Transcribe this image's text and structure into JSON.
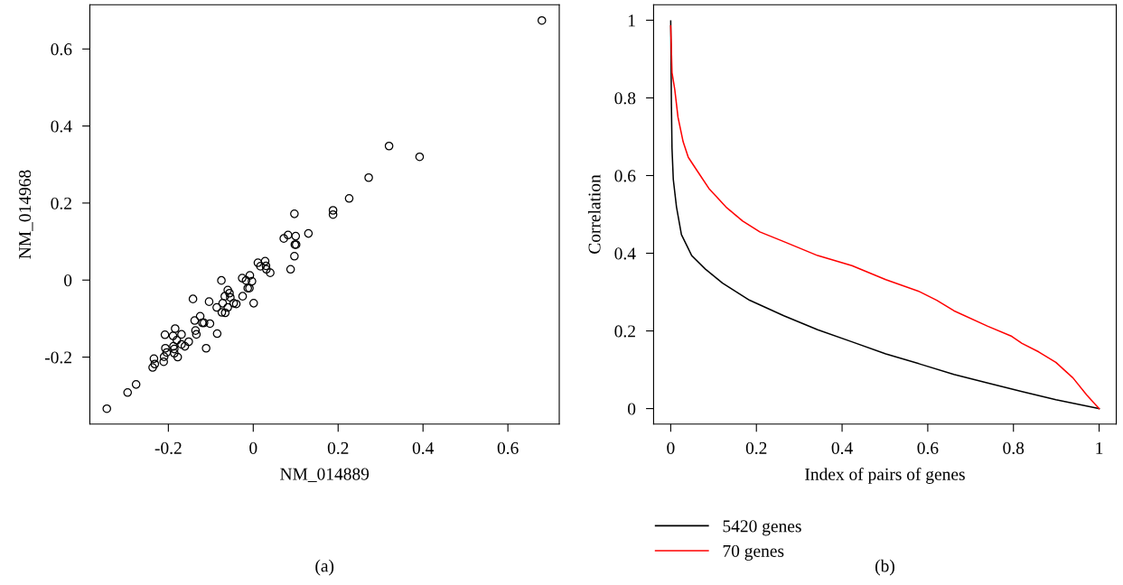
{
  "chart_data": [
    {
      "type": "scatter",
      "xlabel": "NM_014889",
      "ylabel": "NM_014968",
      "annotations": [
        "(a)"
      ],
      "marker": "circle",
      "grid": false,
      "legend": false,
      "xlim": [
        -0.385,
        0.721
      ],
      "ylim": [
        -0.374,
        0.715
      ],
      "xticks": [
        -0.2,
        0,
        0.2,
        0.4,
        0.6
      ],
      "yticks": [
        -0.2,
        0,
        0.2,
        0.4,
        0.6
      ],
      "series": [
        {
          "color": "#000000",
          "x": [
            0.68,
            0.32,
            0.392,
            0.272,
            0.226,
            0.188,
            0.188,
            0.097,
            0.13,
            0.072,
            0.082,
            0.1,
            0.098,
            0.101,
            0.097,
            0.088,
            0.011,
            0.017,
            0.028,
            0.03,
            0.031,
            0.04,
            -0.026,
            -0.008,
            -0.017,
            -0.003,
            -0.013,
            -0.009,
            -0.075,
            -0.025,
            0.001,
            -0.06,
            -0.056,
            -0.067,
            -0.054,
            -0.046,
            -0.04,
            -0.104,
            -0.142,
            -0.072,
            -0.086,
            -0.06,
            -0.074,
            -0.066,
            -0.138,
            -0.125,
            -0.12,
            -0.116,
            -0.102,
            -0.136,
            -0.134,
            -0.085,
            -0.184,
            -0.208,
            -0.189,
            -0.169,
            -0.18,
            -0.152,
            -0.169,
            -0.161,
            -0.188,
            -0.111,
            -0.207,
            -0.186,
            -0.204,
            -0.186,
            -0.178,
            -0.21,
            -0.234,
            -0.211,
            -0.232,
            -0.237,
            -0.276,
            -0.296,
            -0.345
          ],
          "values": [
            0.674,
            0.348,
            0.32,
            0.266,
            0.212,
            0.181,
            0.17,
            0.172,
            0.121,
            0.108,
            0.117,
            0.114,
            0.092,
            0.092,
            0.062,
            0.028,
            0.045,
            0.036,
            0.049,
            0.037,
            0.028,
            0.019,
            0.005,
            0.012,
            -0.001,
            -0.003,
            -0.021,
            -0.021,
            -0.001,
            -0.042,
            -0.06,
            -0.026,
            -0.034,
            -0.042,
            -0.045,
            -0.06,
            -0.062,
            -0.056,
            -0.049,
            -0.06,
            -0.071,
            -0.071,
            -0.084,
            -0.085,
            -0.105,
            -0.094,
            -0.111,
            -0.111,
            -0.113,
            -0.131,
            -0.141,
            -0.139,
            -0.126,
            -0.142,
            -0.145,
            -0.141,
            -0.156,
            -0.16,
            -0.167,
            -0.172,
            -0.172,
            -0.177,
            -0.177,
            -0.179,
            -0.188,
            -0.19,
            -0.2,
            -0.199,
            -0.204,
            -0.212,
            -0.218,
            -0.227,
            -0.271,
            -0.292,
            -0.334
          ]
        }
      ]
    },
    {
      "type": "line",
      "xlabel": "Index of pairs of genes",
      "ylabel": "Correlation",
      "annotations": [
        "(b)"
      ],
      "grid": false,
      "legend": "bottom left",
      "marker": "none",
      "line_style": "solid",
      "xlim": [
        -0.04,
        1.04
      ],
      "ylim": [
        -0.04,
        1.04
      ],
      "xticks": [
        0,
        0.2,
        0.4,
        0.6,
        0.8,
        1
      ],
      "yticks": [
        0,
        0.2,
        0.4,
        0.6,
        0.8,
        1
      ],
      "series": [
        {
          "name": "5420 genes",
          "color": "#000000",
          "x": [
            0,
            0.0016,
            0.003,
            0.006,
            0.0135,
            0.025,
            0.049,
            0.081,
            0.121,
            0.184,
            0.264,
            0.343,
            0.423,
            0.502,
            0.581,
            0.661,
            0.74,
            0.82,
            0.899,
            1
          ],
          "values": [
            0.998,
            0.785,
            0.67,
            0.59,
            0.519,
            0.448,
            0.394,
            0.359,
            0.323,
            0.279,
            0.239,
            0.203,
            0.172,
            0.141,
            0.115,
            0.088,
            0.066,
            0.044,
            0.023,
            0
          ]
        },
        {
          "name": "70 genes",
          "color": "#ff0000",
          "x": [
            0,
            0.003,
            0.0095,
            0.017,
            0.029,
            0.041,
            0.065,
            0.089,
            0.129,
            0.168,
            0.208,
            0.264,
            0.343,
            0.423,
            0.502,
            0.581,
            0.621,
            0.661,
            0.74,
            0.796,
            0.82,
            0.859,
            0.899,
            0.939,
            0.971,
            1
          ],
          "values": [
            0.985,
            0.865,
            0.821,
            0.75,
            0.687,
            0.647,
            0.607,
            0.567,
            0.519,
            0.483,
            0.455,
            0.43,
            0.394,
            0.368,
            0.332,
            0.301,
            0.279,
            0.252,
            0.212,
            0.186,
            0.168,
            0.146,
            0.119,
            0.079,
            0.035,
            0
          ]
        }
      ]
    }
  ]
}
